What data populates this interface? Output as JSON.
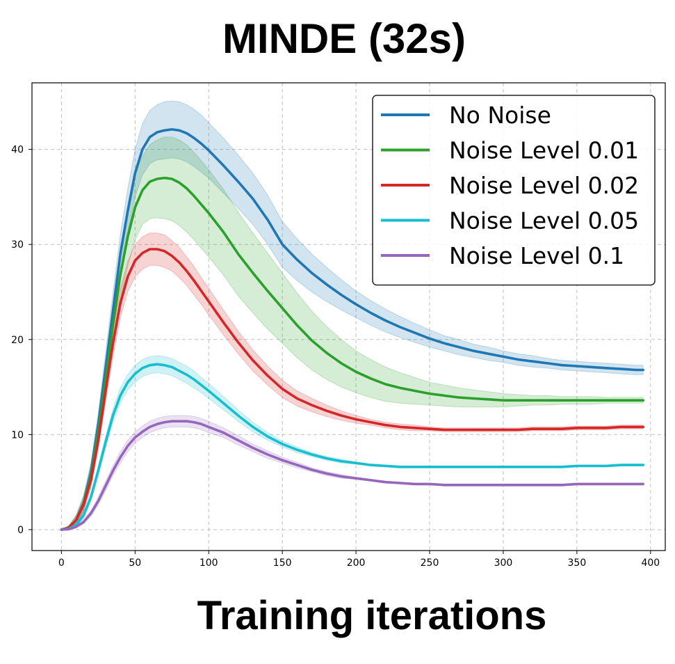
{
  "chart_data": {
    "type": "line",
    "title": "MINDE (32s)",
    "xlabel": "Training iterations",
    "ylabel": "",
    "xlim": [
      -20,
      410
    ],
    "ylim": [
      -2.2,
      47
    ],
    "xticks": [
      0,
      50,
      100,
      150,
      200,
      250,
      300,
      350,
      400
    ],
    "yticks": [
      0,
      10,
      20,
      30,
      40
    ],
    "grid": true,
    "legend_position": "top-right",
    "x": [
      0,
      5,
      10,
      15,
      20,
      25,
      30,
      35,
      40,
      45,
      50,
      55,
      60,
      65,
      70,
      75,
      80,
      85,
      90,
      95,
      100,
      110,
      120,
      130,
      140,
      150,
      160,
      170,
      180,
      190,
      200,
      210,
      220,
      230,
      240,
      250,
      260,
      270,
      280,
      290,
      300,
      310,
      320,
      330,
      340,
      350,
      360,
      370,
      380,
      390,
      395
    ],
    "series": [
      {
        "name": "No Noise",
        "color": "#1f77b4",
        "values": [
          0,
          0.2,
          1.0,
          2.8,
          6.0,
          11.0,
          17.0,
          23.0,
          29.0,
          33.5,
          37.5,
          40.0,
          41.3,
          41.8,
          42.0,
          42.1,
          42.0,
          41.7,
          41.2,
          40.6,
          39.9,
          38.3,
          36.6,
          34.8,
          32.6,
          30.0,
          28.4,
          27.0,
          25.8,
          24.7,
          23.7,
          22.8,
          22.0,
          21.3,
          20.7,
          20.1,
          19.6,
          19.2,
          18.8,
          18.5,
          18.2,
          17.9,
          17.7,
          17.5,
          17.3,
          17.2,
          17.1,
          17.0,
          16.9,
          16.8,
          16.8
        ],
        "band": [
          0,
          0.2,
          0.5,
          0.8,
          1.0,
          1.3,
          1.6,
          1.9,
          2.1,
          2.3,
          2.5,
          2.7,
          2.8,
          2.9,
          3.0,
          3.0,
          3.0,
          3.0,
          3.0,
          3.0,
          2.9,
          2.9,
          2.8,
          2.7,
          2.6,
          2.4,
          2.2,
          2.0,
          1.8,
          1.6,
          1.4,
          1.3,
          1.2,
          1.1,
          1.0,
          0.9,
          0.8,
          0.8,
          0.7,
          0.7,
          0.6,
          0.6,
          0.6,
          0.5,
          0.5,
          0.5,
          0.5,
          0.5,
          0.5,
          0.5,
          0.5
        ]
      },
      {
        "name": "Noise Level 0.01",
        "color": "#2ca02c",
        "values": [
          0,
          0.2,
          1.0,
          2.7,
          5.6,
          10.2,
          15.8,
          21.5,
          26.8,
          30.8,
          33.9,
          35.7,
          36.6,
          36.9,
          37.0,
          36.9,
          36.5,
          35.9,
          35.1,
          34.2,
          33.3,
          31.3,
          29.0,
          27.0,
          25.1,
          23.3,
          21.5,
          19.9,
          18.6,
          17.5,
          16.6,
          15.9,
          15.3,
          14.9,
          14.6,
          14.3,
          14.1,
          13.9,
          13.8,
          13.7,
          13.6,
          13.6,
          13.6,
          13.6,
          13.6,
          13.6,
          13.6,
          13.6,
          13.6,
          13.6,
          13.6
        ],
        "band": [
          0,
          0.2,
          0.5,
          0.8,
          1.1,
          1.5,
          1.9,
          2.3,
          2.7,
          3.1,
          3.4,
          3.6,
          3.9,
          4.1,
          4.3,
          4.4,
          4.5,
          4.6,
          4.6,
          4.6,
          4.6,
          4.5,
          4.4,
          4.2,
          4.0,
          3.7,
          3.4,
          3.1,
          2.8,
          2.5,
          2.2,
          2.0,
          1.8,
          1.6,
          1.4,
          1.2,
          1.1,
          1.0,
          0.9,
          0.8,
          0.7,
          0.6,
          0.5,
          0.5,
          0.4,
          0.4,
          0.4,
          0.3,
          0.3,
          0.3,
          0.3
        ]
      },
      {
        "name": "Noise Level 0.02",
        "color": "#d62728",
        "values": [
          0,
          0.2,
          1.0,
          2.6,
          5.2,
          9.4,
          14.6,
          19.6,
          23.8,
          26.6,
          28.3,
          29.1,
          29.5,
          29.5,
          29.3,
          28.8,
          28.1,
          27.2,
          26.2,
          25.1,
          24.0,
          21.8,
          19.7,
          17.8,
          16.2,
          14.8,
          13.8,
          13.1,
          12.5,
          12.0,
          11.6,
          11.3,
          11.0,
          10.8,
          10.7,
          10.6,
          10.5,
          10.5,
          10.5,
          10.5,
          10.5,
          10.5,
          10.6,
          10.6,
          10.6,
          10.7,
          10.7,
          10.7,
          10.8,
          10.8,
          10.8
        ],
        "band": [
          0,
          0.2,
          0.4,
          0.6,
          0.8,
          1.0,
          1.2,
          1.4,
          1.5,
          1.6,
          1.7,
          1.7,
          1.7,
          1.7,
          1.7,
          1.6,
          1.6,
          1.5,
          1.5,
          1.4,
          1.4,
          1.3,
          1.2,
          1.1,
          1.0,
          0.9,
          0.8,
          0.7,
          0.6,
          0.5,
          0.4,
          0.3,
          0.3,
          0.3,
          0.3,
          0.2,
          0.2,
          0.2,
          0.2,
          0.2,
          0.2,
          0.2,
          0.2,
          0.2,
          0.2,
          0.2,
          0.2,
          0.2,
          0.2,
          0.2,
          0.2
        ]
      },
      {
        "name": "Noise Level 0.05",
        "color": "#17becf",
        "values": [
          0,
          0.1,
          0.5,
          1.5,
          3.4,
          6.2,
          9.2,
          12.0,
          14.1,
          15.5,
          16.4,
          17.0,
          17.3,
          17.4,
          17.3,
          17.1,
          16.7,
          16.3,
          15.8,
          15.2,
          14.6,
          13.3,
          12.0,
          10.8,
          9.8,
          9.0,
          8.4,
          7.9,
          7.5,
          7.2,
          7.0,
          6.8,
          6.7,
          6.6,
          6.6,
          6.6,
          6.6,
          6.6,
          6.6,
          6.6,
          6.6,
          6.6,
          6.6,
          6.6,
          6.6,
          6.7,
          6.7,
          6.7,
          6.8,
          6.8,
          6.8
        ],
        "band": [
          0,
          0.1,
          0.2,
          0.3,
          0.4,
          0.5,
          0.6,
          0.7,
          0.8,
          0.8,
          0.9,
          0.9,
          0.9,
          0.9,
          0.9,
          0.9,
          0.9,
          0.9,
          0.9,
          0.8,
          0.8,
          0.7,
          0.6,
          0.5,
          0.4,
          0.3,
          0.3,
          0.2,
          0.2,
          0.2,
          0.1,
          0.1,
          0.1,
          0.1,
          0.1,
          0.1,
          0.1,
          0.1,
          0.1,
          0.1,
          0.1,
          0.1,
          0.1,
          0.1,
          0.1,
          0.1,
          0.1,
          0.1,
          0.1,
          0.1,
          0.1
        ]
      },
      {
        "name": "Noise Level 0.1",
        "color": "#9467bd",
        "values": [
          0,
          0.05,
          0.3,
          0.8,
          1.7,
          3.0,
          4.6,
          6.2,
          7.6,
          8.8,
          9.7,
          10.3,
          10.8,
          11.1,
          11.3,
          11.4,
          11.4,
          11.4,
          11.3,
          11.1,
          10.8,
          10.2,
          9.4,
          8.6,
          7.9,
          7.3,
          6.8,
          6.3,
          5.9,
          5.6,
          5.4,
          5.2,
          5.0,
          4.9,
          4.8,
          4.8,
          4.7,
          4.7,
          4.7,
          4.7,
          4.7,
          4.7,
          4.7,
          4.7,
          4.7,
          4.8,
          4.8,
          4.8,
          4.8,
          4.8,
          4.8
        ],
        "band": [
          0,
          0.05,
          0.1,
          0.2,
          0.3,
          0.4,
          0.5,
          0.5,
          0.6,
          0.6,
          0.6,
          0.6,
          0.6,
          0.6,
          0.6,
          0.6,
          0.6,
          0.6,
          0.6,
          0.6,
          0.6,
          0.5,
          0.5,
          0.4,
          0.4,
          0.3,
          0.3,
          0.2,
          0.2,
          0.2,
          0.1,
          0.1,
          0.1,
          0.1,
          0.1,
          0.1,
          0.1,
          0.1,
          0.1,
          0.1,
          0.1,
          0.1,
          0.1,
          0.1,
          0.1,
          0.1,
          0.1,
          0.1,
          0.1,
          0.1,
          0.1
        ]
      }
    ]
  }
}
